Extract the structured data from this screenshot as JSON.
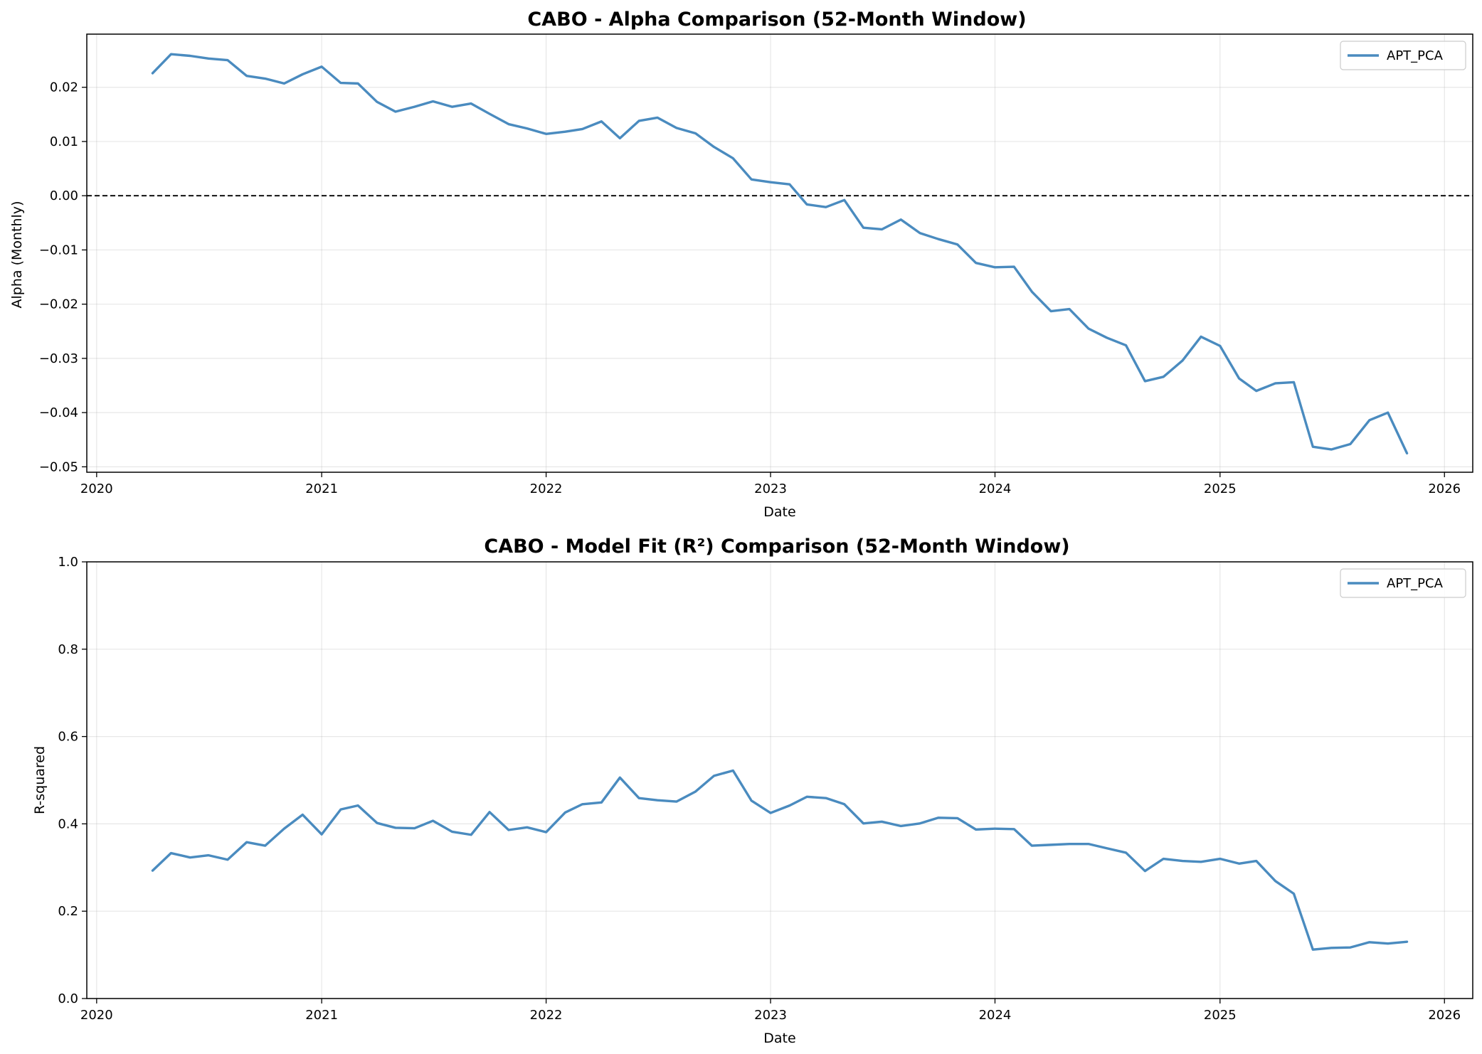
{
  "chart_data": [
    {
      "type": "line",
      "title": "CABO - Alpha Comparison (52-Month Window)",
      "xlabel": "Date",
      "ylabel": "Alpha (Monthly)",
      "xlim": [
        "2019-12-16",
        "2026-02-16"
      ],
      "ylim": [
        -0.051,
        0.0298
      ],
      "xticks": [
        "2020",
        "2021",
        "2022",
        "2023",
        "2024",
        "2025",
        "2026"
      ],
      "yticks": [
        0.02,
        0.01,
        0.0,
        -0.01,
        -0.02,
        -0.03,
        -0.04,
        -0.05
      ],
      "ytick_labels": [
        "0.02",
        "0.01",
        "0.00",
        "−0.01",
        "−0.02",
        "−0.03",
        "−0.04",
        "−0.05"
      ],
      "grid": true,
      "reference_line": {
        "y": 0,
        "style": "dashed",
        "color": "#000000"
      },
      "legend": {
        "position": "top-right",
        "entries": [
          "APT_PCA"
        ]
      },
      "series": [
        {
          "name": "APT_PCA",
          "color": "#4a8bbf",
          "x": [
            "2020-04",
            "2020-05",
            "2020-06",
            "2020-07",
            "2020-08",
            "2020-09",
            "2020-10",
            "2020-11",
            "2020-12",
            "2021-01",
            "2021-02",
            "2021-03",
            "2021-04",
            "2021-05",
            "2021-06",
            "2021-07",
            "2021-08",
            "2021-09",
            "2021-10",
            "2021-11",
            "2021-12",
            "2022-01",
            "2022-02",
            "2022-03",
            "2022-04",
            "2022-05",
            "2022-06",
            "2022-07",
            "2022-08",
            "2022-09",
            "2022-10",
            "2022-11",
            "2022-12",
            "2023-01",
            "2023-02",
            "2023-03",
            "2023-04",
            "2023-05",
            "2023-06",
            "2023-07",
            "2023-08",
            "2023-09",
            "2023-10",
            "2023-11",
            "2023-12",
            "2024-01",
            "2024-02",
            "2024-03",
            "2024-04",
            "2024-05",
            "2024-06",
            "2024-07",
            "2024-08",
            "2024-09",
            "2024-10",
            "2024-11",
            "2024-12",
            "2025-01",
            "2025-02",
            "2025-03",
            "2025-04",
            "2025-05",
            "2025-06",
            "2025-07",
            "2025-08",
            "2025-09",
            "2025-10",
            "2025-11"
          ],
          "y": [
            0.0226,
            0.0261,
            0.0258,
            0.0253,
            0.025,
            0.0221,
            0.0216,
            0.0207,
            0.0224,
            0.0238,
            0.0208,
            0.0207,
            0.0173,
            0.0155,
            0.0164,
            0.0174,
            0.0164,
            0.017,
            0.0151,
            0.0132,
            0.0124,
            0.0114,
            0.0118,
            0.0123,
            0.0137,
            0.0106,
            0.0138,
            0.0144,
            0.0125,
            0.0115,
            0.009,
            0.0069,
            0.003,
            0.0025,
            0.0021,
            -0.0016,
            -0.0021,
            -0.0008,
            -0.0059,
            -0.0062,
            -0.0044,
            -0.0069,
            -0.008,
            -0.009,
            -0.0124,
            -0.0132,
            -0.0131,
            -0.0177,
            -0.0213,
            -0.0209,
            -0.0245,
            -0.0262,
            -0.0276,
            -0.0342,
            -0.0334,
            -0.0304,
            -0.026,
            -0.0277,
            -0.0337,
            -0.036,
            -0.0346,
            -0.0344,
            -0.0463,
            -0.0468,
            -0.0458,
            -0.0414,
            -0.04,
            -0.0475
          ]
        }
      ]
    },
    {
      "type": "line",
      "title": "CABO - Model Fit (R²) Comparison (52-Month Window)",
      "xlabel": "Date",
      "ylabel": "R-squared",
      "xlim": [
        "2019-12-16",
        "2026-02-16"
      ],
      "ylim": [
        0,
        1.0
      ],
      "xticks": [
        "2020",
        "2021",
        "2022",
        "2023",
        "2024",
        "2025",
        "2026"
      ],
      "yticks": [
        0.0,
        0.2,
        0.4,
        0.6,
        0.8,
        1.0
      ],
      "ytick_labels": [
        "0.0",
        "0.2",
        "0.4",
        "0.6",
        "0.8",
        "1.0"
      ],
      "grid": true,
      "legend": {
        "position": "top-right",
        "entries": [
          "APT_PCA"
        ]
      },
      "series": [
        {
          "name": "APT_PCA",
          "color": "#4a8bbf",
          "x": [
            "2020-04",
            "2020-05",
            "2020-06",
            "2020-07",
            "2020-08",
            "2020-09",
            "2020-10",
            "2020-11",
            "2020-12",
            "2021-01",
            "2021-02",
            "2021-03",
            "2021-04",
            "2021-05",
            "2021-06",
            "2021-07",
            "2021-08",
            "2021-09",
            "2021-10",
            "2021-11",
            "2021-12",
            "2022-01",
            "2022-02",
            "2022-03",
            "2022-04",
            "2022-05",
            "2022-06",
            "2022-07",
            "2022-08",
            "2022-09",
            "2022-10",
            "2022-11",
            "2022-12",
            "2023-01",
            "2023-02",
            "2023-03",
            "2023-04",
            "2023-05",
            "2023-06",
            "2023-07",
            "2023-08",
            "2023-09",
            "2023-10",
            "2023-11",
            "2023-12",
            "2024-01",
            "2024-02",
            "2024-03",
            "2024-04",
            "2024-05",
            "2024-06",
            "2024-07",
            "2024-08",
            "2024-09",
            "2024-10",
            "2024-11",
            "2024-12",
            "2025-01",
            "2025-02",
            "2025-03",
            "2025-04",
            "2025-05",
            "2025-06",
            "2025-07",
            "2025-08",
            "2025-09",
            "2025-10",
            "2025-11"
          ],
          "y": [
            0.293,
            0.333,
            0.323,
            0.328,
            0.318,
            0.358,
            0.35,
            0.389,
            0.421,
            0.376,
            0.433,
            0.442,
            0.402,
            0.391,
            0.39,
            0.407,
            0.382,
            0.375,
            0.427,
            0.386,
            0.392,
            0.381,
            0.426,
            0.445,
            0.449,
            0.506,
            0.459,
            0.454,
            0.451,
            0.474,
            0.51,
            0.522,
            0.453,
            0.425,
            0.442,
            0.462,
            0.459,
            0.445,
            0.401,
            0.405,
            0.395,
            0.401,
            0.414,
            0.413,
            0.387,
            0.389,
            0.388,
            0.35,
            0.352,
            0.354,
            0.354,
            0.344,
            0.334,
            0.292,
            0.32,
            0.315,
            0.313,
            0.32,
            0.309,
            0.315,
            0.269,
            0.24,
            0.112,
            0.116,
            0.117,
            0.129,
            0.126,
            0.13
          ]
        }
      ]
    }
  ]
}
